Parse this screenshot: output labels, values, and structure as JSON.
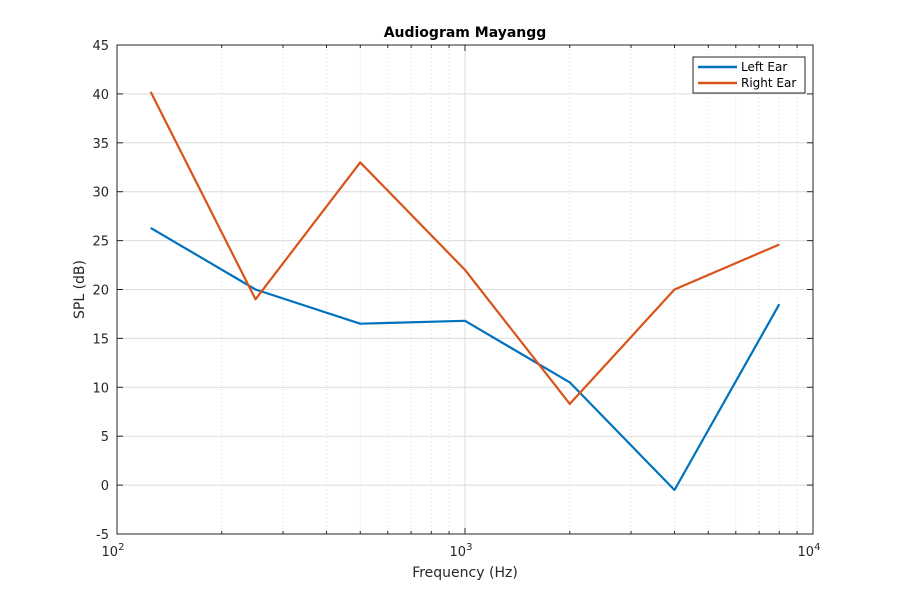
{
  "chart_data": {
    "type": "line",
    "title": "Audiogram Mayangg",
    "xlabel": "Frequency (Hz)",
    "ylabel": "SPL (dB)",
    "xscale": "log",
    "xlim": [
      100,
      10000
    ],
    "ylim": [
      -5,
      45
    ],
    "yticks": [
      -5,
      0,
      5,
      10,
      15,
      20,
      25,
      30,
      35,
      40,
      45
    ],
    "xticks": [
      {
        "value": 100,
        "base": "10",
        "exp": "2"
      },
      {
        "value": 1000,
        "base": "10",
        "exp": "3"
      },
      {
        "value": 10000,
        "base": "10",
        "exp": "4"
      }
    ],
    "grid": true,
    "minor_grid": true,
    "legend_position": "top-right",
    "x": [
      125,
      250,
      500,
      1000,
      2000,
      4000,
      8000
    ],
    "series": [
      {
        "name": "Left Ear",
        "color": "#0072BD",
        "values": [
          26.3,
          20.0,
          16.5,
          16.8,
          10.5,
          -0.5,
          18.5
        ]
      },
      {
        "name": "Right Ear",
        "color": "#D95319",
        "values": [
          40.2,
          19.0,
          33.0,
          22.0,
          8.3,
          20.0,
          24.6
        ]
      }
    ]
  }
}
